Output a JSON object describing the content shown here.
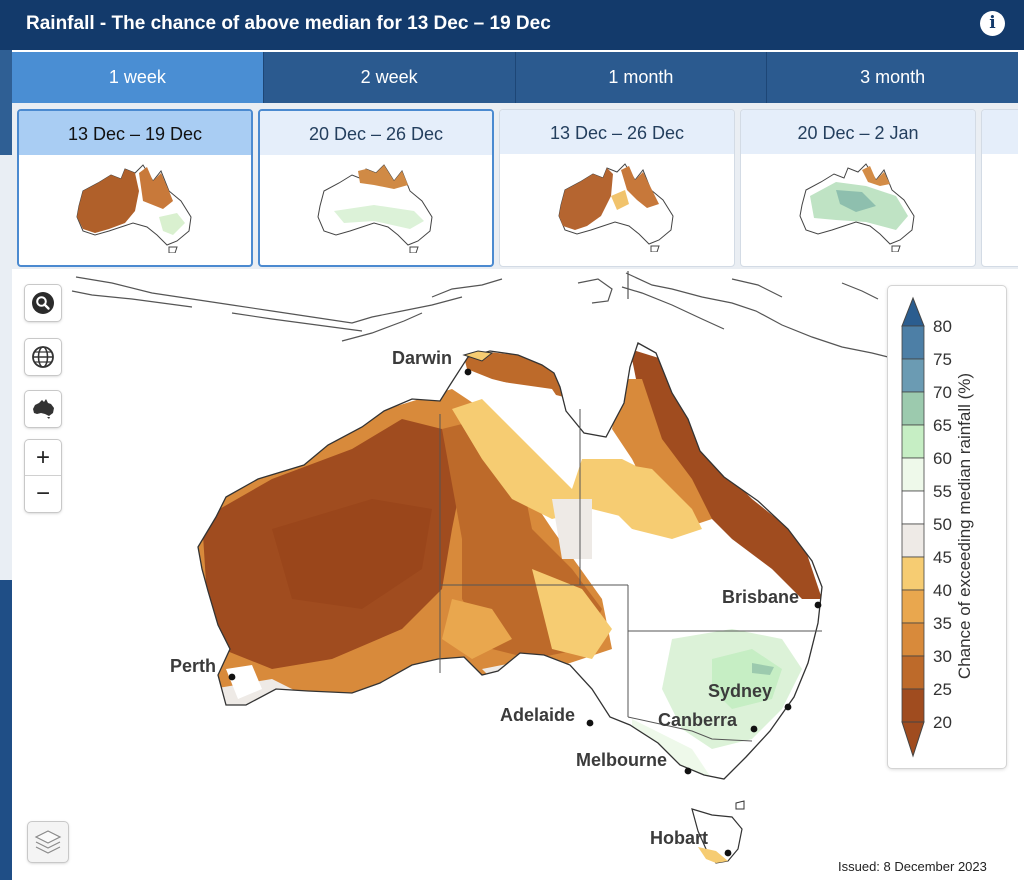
{
  "header": {
    "title": "Rainfall - The chance of above median for 13 Dec – 19 Dec",
    "info_icon": "info-icon",
    "info_glyph": "i"
  },
  "tabs": [
    {
      "label": "1 week",
      "active": true
    },
    {
      "label": "2 week",
      "active": false
    },
    {
      "label": "1 month",
      "active": false
    },
    {
      "label": "3 month",
      "active": false
    }
  ],
  "thumbnails": [
    {
      "label": "13 Dec – 19 Dec",
      "active": true
    },
    {
      "label": "20 Dec – 26 Dec",
      "active": false
    },
    {
      "label": "13 Dec – 26 Dec",
      "active": false
    },
    {
      "label": "20 Dec – 2 Jan",
      "active": false
    }
  ],
  "map_controls": {
    "search_icon": "search-icon",
    "globe_icon": "globe-icon",
    "australia_icon": "australia-icon",
    "zoom_in": "+",
    "zoom_out": "−",
    "layers_icon": "layers-icon"
  },
  "cities": [
    "Darwin",
    "Brisbane",
    "Perth",
    "Sydney",
    "Adelaide",
    "Canberra",
    "Melbourne",
    "Hobart"
  ],
  "legend": {
    "title": "Chance of exceeding median rainfall (%)",
    "values": [
      "80",
      "75",
      "70",
      "65",
      "60",
      "55",
      "50",
      "45",
      "40",
      "35",
      "30",
      "25",
      "20"
    ],
    "colors": [
      "#2b5d8f",
      "#4d7fa6",
      "#6b9bb3",
      "#9ccaae",
      "#c6eec4",
      "#eef9ea",
      "#ffffff",
      "#eeeae6",
      "#f6cc72",
      "#e9a74e",
      "#d88a3b",
      "#bd6a2a",
      "#a04c1f"
    ]
  },
  "issued": "Issued: 8 December 2023"
}
